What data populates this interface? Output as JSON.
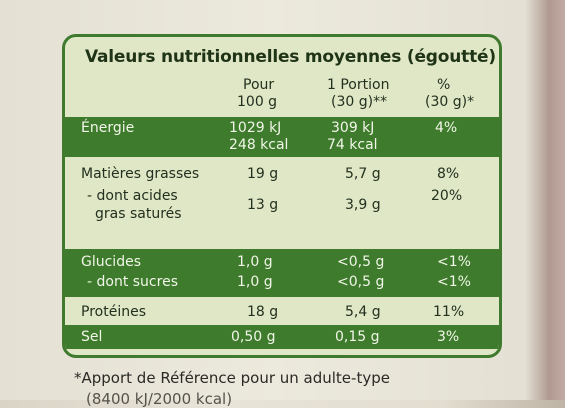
{
  "title": "Valeurs nutritionnelles moyennes (égoutté)",
  "headers": {
    "col1_line1": "Pour",
    "col1_line2": "100 g",
    "col2_line1": "1 Portion",
    "col2_line2": "(30 g)**",
    "col3_line1": "%",
    "col3_line2": "(30 g)*"
  },
  "rows": {
    "energie": {
      "label": "Énergie",
      "v100_kj": "1029 kJ",
      "v100_kcal": "248 kcal",
      "portion_kj": "309 kJ",
      "portion_kcal": "74 kcal",
      "pct": "4%"
    },
    "matieres": {
      "label": "Matières grasses",
      "v100": "19 g",
      "portion": "5,7 g",
      "pct": "8%"
    },
    "satures": {
      "label1": "- dont acides",
      "label2": "gras saturés",
      "v100": "13 g",
      "portion": "3,9 g",
      "pct": "20%"
    },
    "glucides": {
      "label": "Glucides",
      "v100": "1,0 g",
      "portion": "<0,5 g",
      "pct": "<1%"
    },
    "sucres": {
      "label": "- dont sucres",
      "v100": "1,0 g",
      "portion": "<0,5 g",
      "pct": "<1%"
    },
    "proteines": {
      "label": "Protéines",
      "v100": "18 g",
      "portion": "5,4 g",
      "pct": "11%"
    },
    "sel": {
      "label": "Sel",
      "v100": "0,50 g",
      "portion": "0,15 g",
      "pct": "3%"
    }
  },
  "footnote": "*Apport de Référence pour un adulte-type",
  "footnote_cut": "(8400 kJ/2000 kcal)",
  "colors": {
    "panel_green": "#3e7b2c",
    "panel_bg": "#dfe7c6"
  }
}
